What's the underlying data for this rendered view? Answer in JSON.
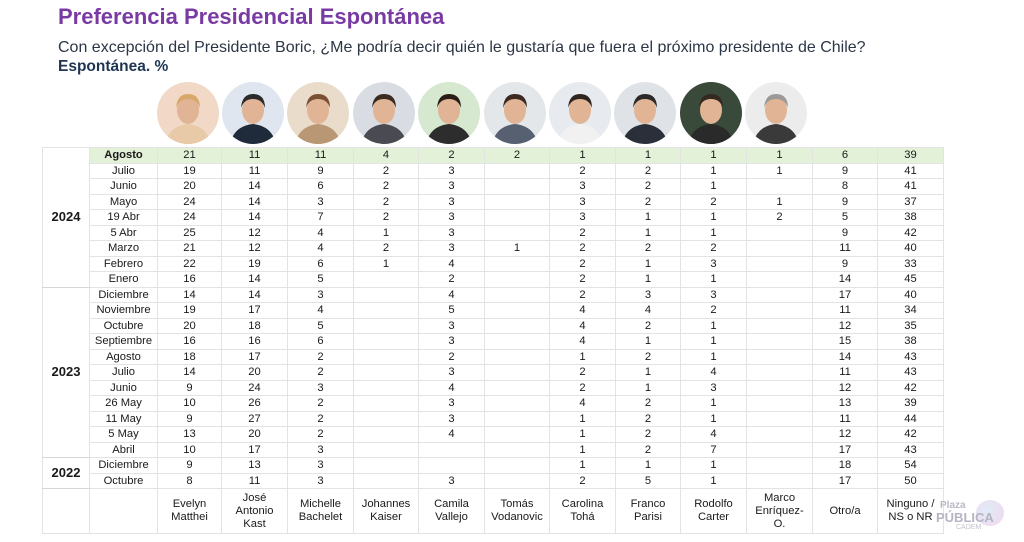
{
  "title": "Preferencia Presidencial Espontánea",
  "subtitle": "Con excepción del Presidente Boric, ¿Me podría decir quién le gustaría que fuera el próximo presidente de Chile?",
  "unit": "Espontánea. %",
  "logo": {
    "line1": "Plaza",
    "line2": "PÚBLICA",
    "line3": "CADEM"
  },
  "colors": {
    "title": "#7a3aa4",
    "highlight_row": "#e2f1d8",
    "subtitle": "#2c3646"
  },
  "candidates": [
    {
      "name_lines": [
        "Evelyn",
        "Matthei"
      ]
    },
    {
      "name_lines": [
        "José",
        "Antonio",
        "Kast"
      ]
    },
    {
      "name_lines": [
        "Michelle",
        "Bachelet"
      ]
    },
    {
      "name_lines": [
        "Johannes",
        "Kaiser"
      ]
    },
    {
      "name_lines": [
        "Camila",
        "Vallejo"
      ]
    },
    {
      "name_lines": [
        "Tomás",
        "Vodanovic"
      ]
    },
    {
      "name_lines": [
        "Carolina",
        "Tohá"
      ]
    },
    {
      "name_lines": [
        "Franco",
        "Parisi"
      ]
    },
    {
      "name_lines": [
        "Rodolfo",
        "Carter"
      ]
    },
    {
      "name_lines": [
        "Marco",
        "Enríquez-",
        "O."
      ]
    },
    {
      "name_lines": [
        "Otro/a"
      ]
    },
    {
      "name_lines": [
        "Ninguno /",
        "NS o NR"
      ]
    }
  ],
  "chart_data": {
    "type": "table",
    "title": "Preferencia Presidencial Espontánea",
    "columns": [
      "Evelyn Matthei",
      "José Antonio Kast",
      "Michelle Bachelet",
      "Johannes Kaiser",
      "Camila Vallejo",
      "Tomás Vodanovic",
      "Carolina Tohá",
      "Franco Parisi",
      "Rodolfo Carter",
      "Marco Enríquez-O.",
      "Otro/a",
      "Ninguno / NS o NR"
    ],
    "groups": [
      {
        "year": "2024",
        "rows": [
          {
            "month": "Agosto",
            "highlight": true,
            "values": [
              "21",
              "11",
              "11",
              "4",
              "2",
              "2",
              "1",
              "1",
              "1",
              "1",
              "6",
              "39"
            ]
          },
          {
            "month": "Julio",
            "values": [
              "19",
              "11",
              "9",
              "2",
              "3",
              "",
              "2",
              "2",
              "1",
              "1",
              "9",
              "41"
            ]
          },
          {
            "month": "Junio",
            "values": [
              "20",
              "14",
              "6",
              "2",
              "3",
              "",
              "3",
              "2",
              "1",
              "",
              "8",
              "41"
            ]
          },
          {
            "month": "Mayo",
            "values": [
              "24",
              "14",
              "3",
              "2",
              "3",
              "",
              "3",
              "2",
              "2",
              "1",
              "9",
              "37"
            ]
          },
          {
            "month": "19 Abr",
            "values": [
              "24",
              "14",
              "7",
              "2",
              "3",
              "",
              "3",
              "1",
              "1",
              "2",
              "5",
              "38"
            ]
          },
          {
            "month": "5 Abr",
            "values": [
              "25",
              "12",
              "4",
              "1",
              "3",
              "",
              "2",
              "1",
              "1",
              "",
              "9",
              "42"
            ]
          },
          {
            "month": "Marzo",
            "values": [
              "21",
              "12",
              "4",
              "2",
              "3",
              "1",
              "2",
              "2",
              "2",
              "",
              "11",
              "40"
            ]
          },
          {
            "month": "Febrero",
            "values": [
              "22",
              "19",
              "6",
              "1",
              "4",
              "",
              "2",
              "1",
              "3",
              "",
              "9",
              "33"
            ]
          },
          {
            "month": "Enero",
            "values": [
              "16",
              "14",
              "5",
              "",
              "2",
              "",
              "2",
              "1",
              "1",
              "",
              "14",
              "45"
            ]
          }
        ]
      },
      {
        "year": "2023",
        "rows": [
          {
            "month": "Diciembre",
            "values": [
              "14",
              "14",
              "3",
              "",
              "4",
              "",
              "2",
              "3",
              "3",
              "",
              "17",
              "40"
            ]
          },
          {
            "month": "Noviembre",
            "values": [
              "19",
              "17",
              "4",
              "",
              "5",
              "",
              "4",
              "4",
              "2",
              "",
              "11",
              "34"
            ]
          },
          {
            "month": "Octubre",
            "values": [
              "20",
              "18",
              "5",
              "",
              "3",
              "",
              "4",
              "2",
              "1",
              "",
              "12",
              "35"
            ]
          },
          {
            "month": "Septiembre",
            "values": [
              "16",
              "16",
              "6",
              "",
              "3",
              "",
              "4",
              "1",
              "1",
              "",
              "15",
              "38"
            ]
          },
          {
            "month": "Agosto",
            "values": [
              "18",
              "17",
              "2",
              "",
              "2",
              "",
              "1",
              "2",
              "1",
              "",
              "14",
              "43"
            ]
          },
          {
            "month": "Julio",
            "values": [
              "14",
              "20",
              "2",
              "",
              "3",
              "",
              "2",
              "1",
              "4",
              "",
              "11",
              "43"
            ]
          },
          {
            "month": "Junio",
            "values": [
              "9",
              "24",
              "3",
              "",
              "4",
              "",
              "2",
              "1",
              "3",
              "",
              "12",
              "42"
            ]
          },
          {
            "month": "26 May",
            "values": [
              "10",
              "26",
              "2",
              "",
              "3",
              "",
              "4",
              "2",
              "1",
              "",
              "13",
              "39"
            ]
          },
          {
            "month": "11 May",
            "values": [
              "9",
              "27",
              "2",
              "",
              "3",
              "",
              "1",
              "2",
              "1",
              "",
              "11",
              "44"
            ]
          },
          {
            "month": "5 May",
            "values": [
              "13",
              "20",
              "2",
              "",
              "4",
              "",
              "1",
              "2",
              "4",
              "",
              "12",
              "42"
            ]
          },
          {
            "month": "Abril",
            "values": [
              "10",
              "17",
              "3",
              "",
              "",
              "",
              "1",
              "2",
              "7",
              "",
              "17",
              "43"
            ]
          }
        ]
      },
      {
        "year": "2022",
        "rows": [
          {
            "month": "Diciembre",
            "values": [
              "9",
              "13",
              "3",
              "",
              "",
              "",
              "1",
              "1",
              "1",
              "",
              "18",
              "54"
            ]
          },
          {
            "month": "Octubre",
            "values": [
              "8",
              "11",
              "3",
              "",
              "3",
              "",
              "2",
              "5",
              "1",
              "",
              "17",
              "50"
            ]
          }
        ]
      }
    ]
  }
}
